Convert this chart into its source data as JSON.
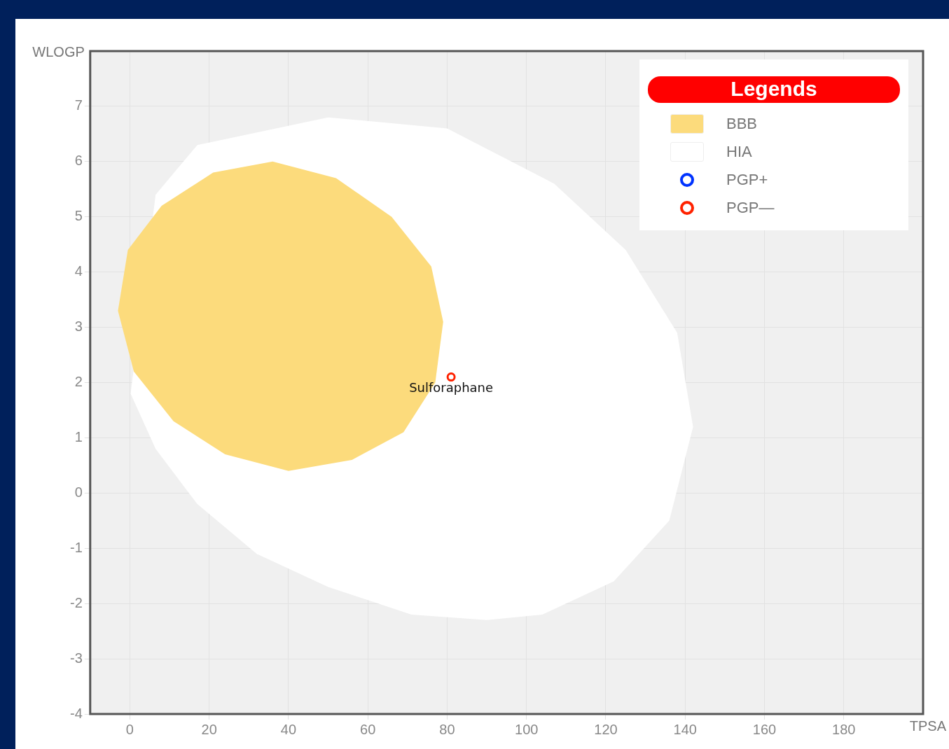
{
  "chart_data": {
    "type": "scatter",
    "xlabel": "TPSA",
    "ylabel": "WLOGP",
    "legend_title": "Legends",
    "legend": "top right",
    "grid": true,
    "marker": "circle",
    "xlim": [
      -10,
      200
    ],
    "xticks": [
      0,
      20,
      40,
      60,
      80,
      100,
      120,
      140,
      160,
      180
    ],
    "ylim": [
      -4,
      8
    ],
    "yticks": [
      -4,
      -3,
      -2,
      -1,
      0,
      1,
      2,
      3,
      4,
      5,
      6,
      7
    ],
    "series": [
      {
        "name": "BBB",
        "type": "area",
        "marker": "none",
        "color": "#fcdb7c",
        "x": [
          79,
          76,
          66,
          52,
          36,
          21,
          8,
          -0.5,
          -3,
          1,
          11,
          24,
          40,
          56,
          69,
          77
        ],
        "values": [
          3.1,
          4.1,
          5.0,
          5.7,
          6.0,
          5.8,
          5.2,
          4.4,
          3.3,
          2.2,
          1.3,
          0.7,
          0.4,
          0.6,
          1.1,
          2.0
        ]
      },
      {
        "name": "HIA",
        "type": "area",
        "marker": "none",
        "color": "#ffffff",
        "x": [
          17,
          50,
          80,
          107,
          125,
          138,
          142,
          136,
          122,
          104,
          90,
          71,
          50,
          32,
          17,
          6.5,
          0.2,
          6.5
        ],
        "values": [
          6.3,
          6.8,
          6.6,
          5.6,
          4.4,
          2.9,
          1.2,
          -0.5,
          -1.6,
          -2.2,
          -2.3,
          -2.2,
          -1.7,
          -1.1,
          -0.2,
          0.8,
          1.8,
          5.4
        ]
      },
      {
        "name": "PGP+",
        "type": "scatter",
        "color": "#0033ff"
      },
      {
        "name": "PGP—",
        "type": "scatter",
        "color": "#ff2200",
        "x": [
          81
        ],
        "values": [
          2.1
        ]
      }
    ],
    "annotations": [
      {
        "text": "Sulforaphane",
        "x": 81,
        "y": 2.1
      }
    ]
  }
}
